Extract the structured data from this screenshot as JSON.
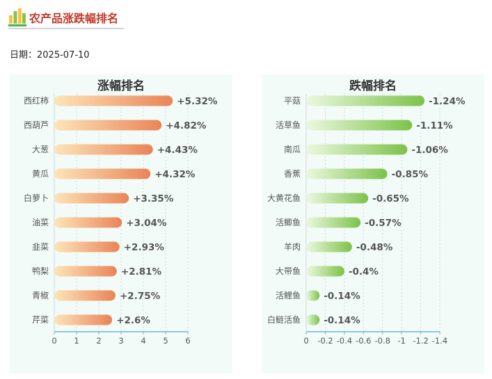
{
  "page": {
    "title": "农产品涨跌幅排名",
    "date_label": "日期：",
    "date_value": "2025-07-10"
  },
  "colors": {
    "title": "#c0392b",
    "panel_bg": "#f2fbf8",
    "up_gradient": [
      "#fde5b8",
      "#e98458"
    ],
    "down_gradient": [
      "#ecf8df",
      "#7cc24a"
    ],
    "axis": "#72b8d0"
  },
  "chart_data": [
    {
      "type": "bar",
      "orientation": "horizontal",
      "title": "涨幅排名",
      "categories": [
        "西红柿",
        "西葫芦",
        "大葱",
        "黄瓜",
        "白萝卜",
        "油菜",
        "韭菜",
        "鸭梨",
        "青椒",
        "芹菜"
      ],
      "values": [
        5.32,
        4.82,
        4.43,
        4.32,
        3.35,
        3.04,
        2.93,
        2.81,
        2.75,
        2.6
      ],
      "data_labels": [
        "+5.32%",
        "+4.82%",
        "+4.43%",
        "+4.32%",
        "+3.35%",
        "+3.04%",
        "+2.93%",
        "+2.81%",
        "+2.75%",
        "+2.6%"
      ],
      "xlim": [
        0,
        6
      ],
      "xticks": [
        0,
        1,
        2,
        3,
        4,
        5,
        6
      ],
      "xtick_labels": [
        "0",
        "1",
        "2",
        "3",
        "4",
        "5",
        "6"
      ],
      "grid": true
    },
    {
      "type": "bar",
      "orientation": "horizontal",
      "title": "跌幅排名",
      "categories": [
        "平菇",
        "活草鱼",
        "南瓜",
        "香蕉",
        "大黄花鱼",
        "活鲫鱼",
        "羊肉",
        "大带鱼",
        "活鲤鱼",
        "白鲢活鱼"
      ],
      "values": [
        -1.24,
        -1.11,
        -1.06,
        -0.85,
        -0.65,
        -0.57,
        -0.48,
        -0.4,
        -0.14,
        -0.14
      ],
      "data_labels": [
        "-1.24%",
        "-1.11%",
        "-1.06%",
        "-0.85%",
        "-0.65%",
        "-0.57%",
        "-0.48%",
        "-0.4%",
        "-0.14%",
        "-0.14%"
      ],
      "xlim": [
        0,
        -1.4
      ],
      "xticks": [
        0,
        -0.2,
        -0.4,
        -0.6,
        -0.8,
        -1,
        -1.2,
        -1.4
      ],
      "xtick_labels": [
        "0",
        "-0.2",
        "-0.4",
        "-0.6",
        "-0.8",
        "-1",
        "-1.2",
        "-1.4"
      ],
      "grid": true
    }
  ]
}
